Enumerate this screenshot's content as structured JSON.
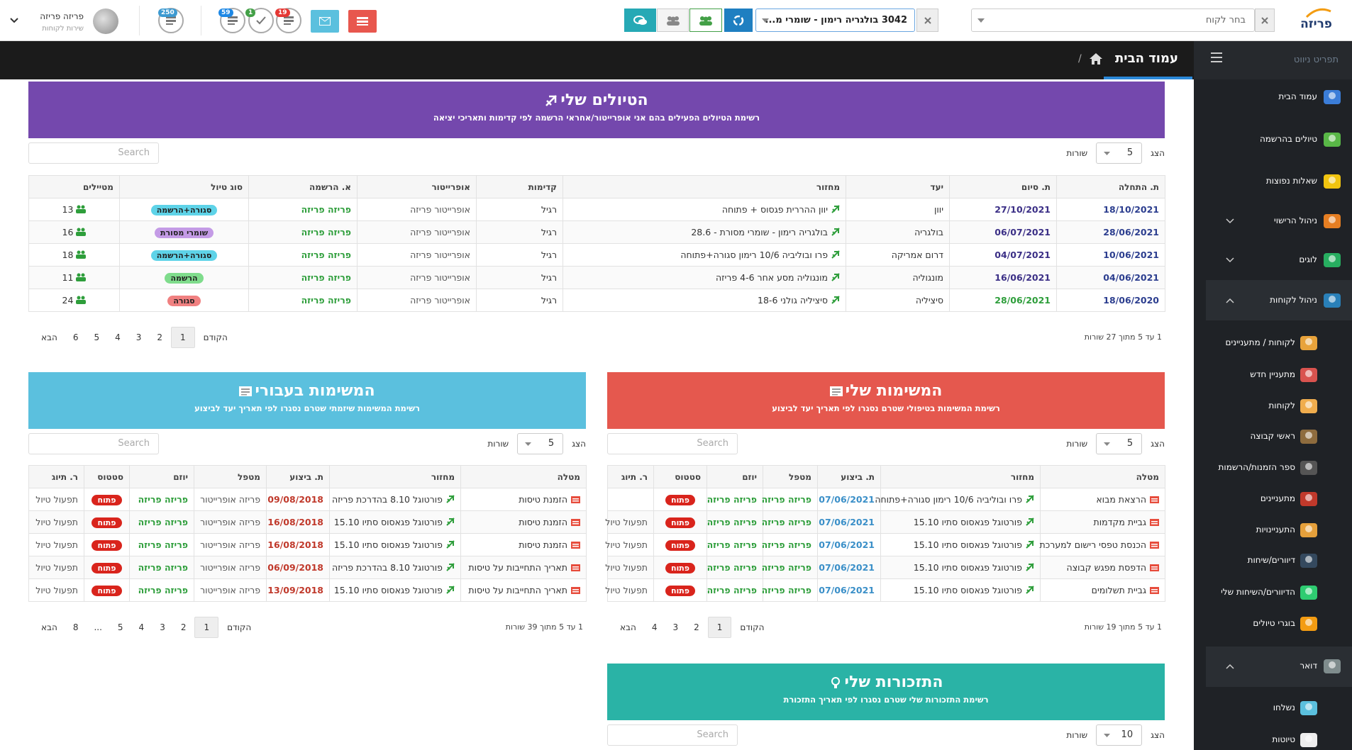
{
  "header": {
    "logo": "פריזה",
    "customer_select": "בחר לקוח",
    "trip_select": "3042 בולגריה רימון - שומרי מ...",
    "user_name": "פריזה פריזה",
    "user_role": "שירות לקוחות",
    "badges": [
      "19",
      "1",
      "59",
      "250"
    ]
  },
  "nav": {
    "menu_title": "תפריט ניווט",
    "page_title": "עמוד הבית",
    "breadcrumb_separator": "/"
  },
  "sidebar": {
    "items": [
      "עמוד הבית",
      "טיולים בהרשמה",
      "שאלות נפוצות",
      "ניהול הרישוי",
      "לוגים",
      "ניהול לקוחות"
    ],
    "customers_menu": [
      "לקוחות / מתעניינים",
      "מתעניין חדש",
      "לקוחות",
      "ראשי קבוצה",
      "ספר הזמנות/הרשמות",
      "מתעניינים",
      "התעניינויות",
      "דיוורים/שיחות",
      "הדיוורים/השיחות שלי",
      "בוגרי טיולים"
    ],
    "mail": "דואר",
    "mail_menu": [
      "נשלחו",
      "טיוטות"
    ]
  },
  "trips": {
    "title": "הטיולים שלי",
    "subtitle": "רשימת הטיולים הפעילים בהם אני אופרייטור/אחראי הרשמה לפי קדימות ותאריכי יציאה",
    "show": "הצג",
    "page_size": "5",
    "rows_label": "שורות",
    "search": "Search",
    "columns": [
      "ת. התחלה",
      "ת. סיום",
      "יעד",
      "מחזור",
      "קדימות",
      "אופרייטור",
      "א. הרשמה",
      "סוג טיול",
      "מטיילים"
    ],
    "rows": [
      [
        "18/10/2021",
        "27/10/2021",
        "יוון",
        "יוון ההררית פגסוס + פתוחה",
        "רגיל",
        "אופרייטור פריזה",
        "פריזה פריזה",
        "סגורה+הרשמה",
        "13"
      ],
      [
        "28/06/2021",
        "06/07/2021",
        "בולגריה",
        "בולגריה רימון - שומרי מסורת - 28.6",
        "רגיל",
        "אופרייטור פריזה",
        "פריזה פריזה",
        "שומרי מסורת",
        "16"
      ],
      [
        "10/06/2021",
        "04/07/2021",
        "דרום אמריקה",
        "פרו ובוליביה 10/6 רימון סגורה+פתוחה",
        "רגיל",
        "אופרייטור פריזה",
        "פריזה פריזה",
        "סגורה+הרשמה",
        "18"
      ],
      [
        "04/06/2021",
        "16/06/2021",
        "מונגוליה",
        "מונגוליה מסע אחר 4-6 פריזה",
        "רגיל",
        "אופרייטור פריזה",
        "פריזה פריזה",
        "הרשמה",
        "11"
      ],
      [
        "18/06/2020",
        "28/06/2021",
        "סיציליה",
        "סיציליה גולני 18-6",
        "רגיל",
        "אופרייטור פריזה",
        "פריזה פריזה",
        "סגורה",
        "24"
      ]
    ],
    "info": "1 עד 5 מתוך 27 שורות",
    "pagination": [
      "הקודם",
      "1",
      "2",
      "3",
      "4",
      "5",
      "6",
      "הבא"
    ]
  },
  "my_tasks": {
    "title": "המשימות שלי",
    "subtitle": "רשימת המשימות בטיפולי שטרם נסגרו לפי תאריך יעד לביצוע",
    "show": "הצג",
    "page_size": "5",
    "rows_label": "שורות",
    "search": "Search",
    "columns": [
      "מטלה",
      "מחזור",
      "ת. ביצוע",
      "מטפל",
      "יוזם",
      "סטטוס",
      "ר. תיוג"
    ],
    "rows": [
      [
        "הרצאת מבוא",
        "פרו ובוליביה 10/6 רימון סגורה+פתוחה",
        "07/06/2021",
        "פריזה פריזה",
        "פריזה פריזה",
        "פתוח",
        null
      ],
      [
        "גביית מקדמות",
        "פורטוגל פגאסוס סתיו 15.10",
        "07/06/2021",
        "פריזה פריזה",
        "פריזה פריזה",
        "פתוח",
        "תפעול טיול"
      ],
      [
        "הכנסת טפסי רישום למערכת",
        "פורטוגל פגאסוס סתיו 15.10",
        "07/06/2021",
        "פריזה פריזה",
        "פריזה פריזה",
        "פתוח",
        "תפעול טיול"
      ],
      [
        "הדפסת מפגש קבוצה",
        "פורטוגל פגאסוס סתיו 15.10",
        "07/06/2021",
        "פריזה פריזה",
        "פריזה פריזה",
        "פתוח",
        "תפעול טיול"
      ],
      [
        "גביית תשלומים",
        "פורטוגל פגאסוס סתיו 15.10",
        "07/06/2021",
        "פריזה פריזה",
        "פריזה פריזה",
        "פתוח",
        "תפעול טיול"
      ]
    ],
    "info": "1 עד 5 מתוך 19 שורות",
    "pagination": [
      "הקודם",
      "1",
      "2",
      "3",
      "4",
      "הבא"
    ]
  },
  "assigned_tasks": {
    "title": "המשימות בעבורי",
    "subtitle": "רשימת המשימות שיזמתי שטרם נסגרו לפי תאריך יעד לביצוע",
    "show": "הצג",
    "page_size": "5",
    "rows_label": "שורות",
    "search": "Search",
    "columns": [
      "מטלה",
      "מחזור",
      "ת. ביצוע",
      "מטפל",
      "יוזם",
      "סטטוס",
      "ר. תיוג"
    ],
    "rows": [
      [
        "הזמנת טיסות",
        "פורטוגל 8.10 בהדרכת פריזה",
        "09/08/2018",
        "פריזה אופרייטור",
        "פריזה פריזה",
        "פתוח",
        "תפעול טיול"
      ],
      [
        "הזמנת טיסות",
        "פורטוגל פגאסוס סתיו 15.10",
        "16/08/2018",
        "פריזה אופרייטור",
        "פריזה פריזה",
        "פתוח",
        "תפעול טיול"
      ],
      [
        "הזמנת טיסות",
        "פורטוגל פגאסוס סתיו 15.10",
        "16/08/2018",
        "פריזה אופרייטור",
        "פריזה פריזה",
        "פתוח",
        "תפעול טיול"
      ],
      [
        "תאריך התחייבות על טיסות",
        "פורטוגל 8.10 בהדרכת פריזה",
        "06/09/2018",
        "פריזה אופרייטור",
        "פריזה פריזה",
        "פתוח",
        "תפעול טיול"
      ],
      [
        "תאריך התחייבות על טיסות",
        "פורטוגל פגאסוס סתיו 15.10",
        "13/09/2018",
        "פריזה אופרייטור",
        "פריזה פריזה",
        "פתוח",
        "תפעול טיול"
      ]
    ],
    "info": "1 עד 5 מתוך 39 שורות",
    "pagination": [
      "הקודם",
      "1",
      "2",
      "3",
      "4",
      "5",
      "...",
      "8",
      "הבא"
    ]
  },
  "reminders": {
    "title": "התזכורות שלי",
    "subtitle": "רשימת התזכורות שלי שטרם נסגרו לפי תאריך התזכורת",
    "show": "הצג",
    "page_size": "10",
    "rows_label": "שורות",
    "search": "Search"
  }
}
